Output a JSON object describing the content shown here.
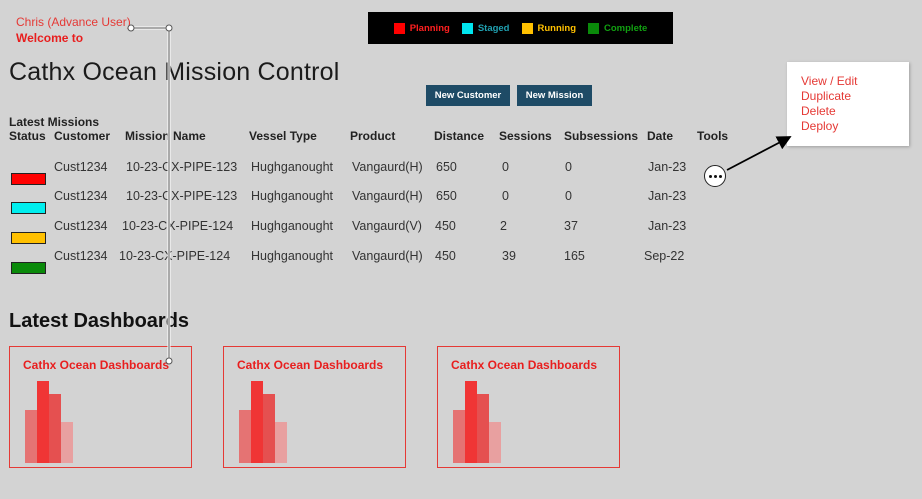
{
  "header": {
    "user_name": "Chris (Advance User)",
    "welcome": "Welcome to",
    "app_title": "Cathx Ocean Mission Control"
  },
  "legend": [
    {
      "label": "Planning",
      "color": "#ff0000"
    },
    {
      "label": "Staged",
      "color": "#00e5ee"
    },
    {
      "label": "Running",
      "color": "#ffc000"
    },
    {
      "label": "Complete",
      "color": "#0a8a0a"
    }
  ],
  "legend_text_colors": [
    "#ff2020",
    "#20a0b0",
    "#ffc000",
    "#11a011"
  ],
  "buttons": {
    "new_customer": "New Customer",
    "new_mission": "New Mission"
  },
  "tools_menu": [
    "View / Edit",
    "Duplicate",
    "Delete",
    "Deploy"
  ],
  "missions": {
    "section_label": "Latest Missions",
    "columns": [
      "Status",
      "Customer",
      "Mission Name",
      "Vessel Type",
      "Product",
      "Distance",
      "Sessions",
      "Subsessions",
      "Date",
      "Tools"
    ],
    "rows": [
      {
        "status": "Planning",
        "status_color": "#ff0000",
        "customer": "Cust1234",
        "mission": "10-23-CX-PIPE-123",
        "vessel": "Hughganought",
        "product": "Vangaurd(H)",
        "distance": "650",
        "sessions": "0",
        "subsessions": "0",
        "date": "Jan-23"
      },
      {
        "status": "Staged",
        "status_color": "#00eeee",
        "customer": "Cust1234",
        "mission": "10-23-CX-PIPE-123",
        "vessel": "Hughganought",
        "product": "Vangaurd(H)",
        "distance": "650",
        "sessions": "0",
        "subsessions": "0",
        "date": "Jan-23"
      },
      {
        "status": "Running",
        "status_color": "#ffc000",
        "customer": "Cust1234",
        "mission": "10-23-CX-PIPE-124",
        "vessel": "Hughganought",
        "product": "Vangaurd(V)",
        "distance": "450",
        "sessions": "2",
        "subsessions": "37",
        "date": "Jan-23"
      },
      {
        "status": "Complete",
        "status_color": "#0a8a0a",
        "customer": "Cust1234",
        "mission": "10-23-CX-PIPE-124",
        "vessel": "Hughganought",
        "product": "Vangaurd(H)",
        "distance": "450",
        "sessions": "39",
        "subsessions": "165",
        "date": "Sep-22"
      }
    ]
  },
  "dashboards": {
    "section_title": "Latest Dashboards",
    "cards": [
      {
        "title": "Cathx Ocean Dashboards"
      },
      {
        "title": "Cathx Ocean Dashboards"
      },
      {
        "title": "Cathx Ocean Dashboards"
      }
    ],
    "thumbnail_bar_levels": [
      0.65,
      1.0,
      0.84,
      0.5
    ],
    "thumbnail_bar_colors": [
      "#e57373",
      "#f03535",
      "#e55050",
      "#e8a0a0"
    ]
  }
}
